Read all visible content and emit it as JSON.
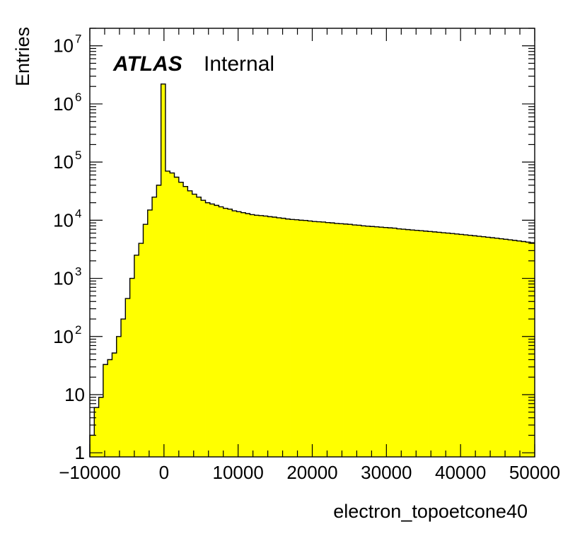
{
  "chart_data": {
    "type": "bar",
    "style": "histogram",
    "fill_color": "#ffff00",
    "line_color": "#000000",
    "xlabel": "electron_topoetcone40",
    "ylabel": "Entries",
    "experiment_label": "ATLAS",
    "status_label": "Internal",
    "x_scale": "linear",
    "y_scale": "log",
    "xlim": [
      -10000,
      50000
    ],
    "ylim": [
      0.85,
      20000000
    ],
    "x_ticks": [
      {
        "value": -10000,
        "label": "−10000"
      },
      {
        "value": 0,
        "label": "0"
      },
      {
        "value": 10000,
        "label": "10000"
      },
      {
        "value": 20000,
        "label": "20000"
      },
      {
        "value": 30000,
        "label": "30000"
      },
      {
        "value": 40000,
        "label": "40000"
      },
      {
        "value": 50000,
        "label": "50000"
      }
    ],
    "y_ticks": [
      {
        "value": 1,
        "base": "1",
        "exp": ""
      },
      {
        "value": 10,
        "base": "10",
        "exp": ""
      },
      {
        "value": 100,
        "base": "10",
        "exp": "2"
      },
      {
        "value": 1000,
        "base": "10",
        "exp": "3"
      },
      {
        "value": 10000,
        "base": "10",
        "exp": "4"
      },
      {
        "value": 100000,
        "base": "10",
        "exp": "5"
      },
      {
        "value": 1000000,
        "base": "10",
        "exp": "6"
      },
      {
        "value": 10000000,
        "base": "10",
        "exp": "7"
      }
    ],
    "bin_edges_start": -10000,
    "bin_width": 600,
    "values": [
      2,
      6,
      9,
      33,
      40,
      52,
      100,
      200,
      450,
      1000,
      2500,
      4000,
      8500,
      15000,
      25000,
      40000,
      2200000,
      70000,
      65000,
      55000,
      45000,
      38000,
      32000,
      28000,
      25000,
      22000,
      20000,
      19000,
      18000,
      17000,
      16000,
      15500,
      14500,
      14000,
      13500,
      13000,
      12500,
      12200,
      12000,
      11800,
      11500,
      11300,
      11000,
      10800,
      10500,
      10300,
      10200,
      10000,
      9900,
      9700,
      9500,
      9400,
      9300,
      9100,
      9000,
      8800,
      8700,
      8600,
      8500,
      8300,
      8200,
      8000,
      7900,
      7800,
      7700,
      7600,
      7500,
      7400,
      7300,
      7100,
      7000,
      6900,
      6800,
      6700,
      6600,
      6500,
      6400,
      6300,
      6200,
      6100,
      6000,
      5900,
      5800,
      5700,
      5600,
      5500,
      5400,
      5300,
      5200,
      5100,
      5000,
      4900,
      4800,
      4700,
      4600,
      4500,
      4400,
      4300,
      4200,
      4100
    ]
  }
}
